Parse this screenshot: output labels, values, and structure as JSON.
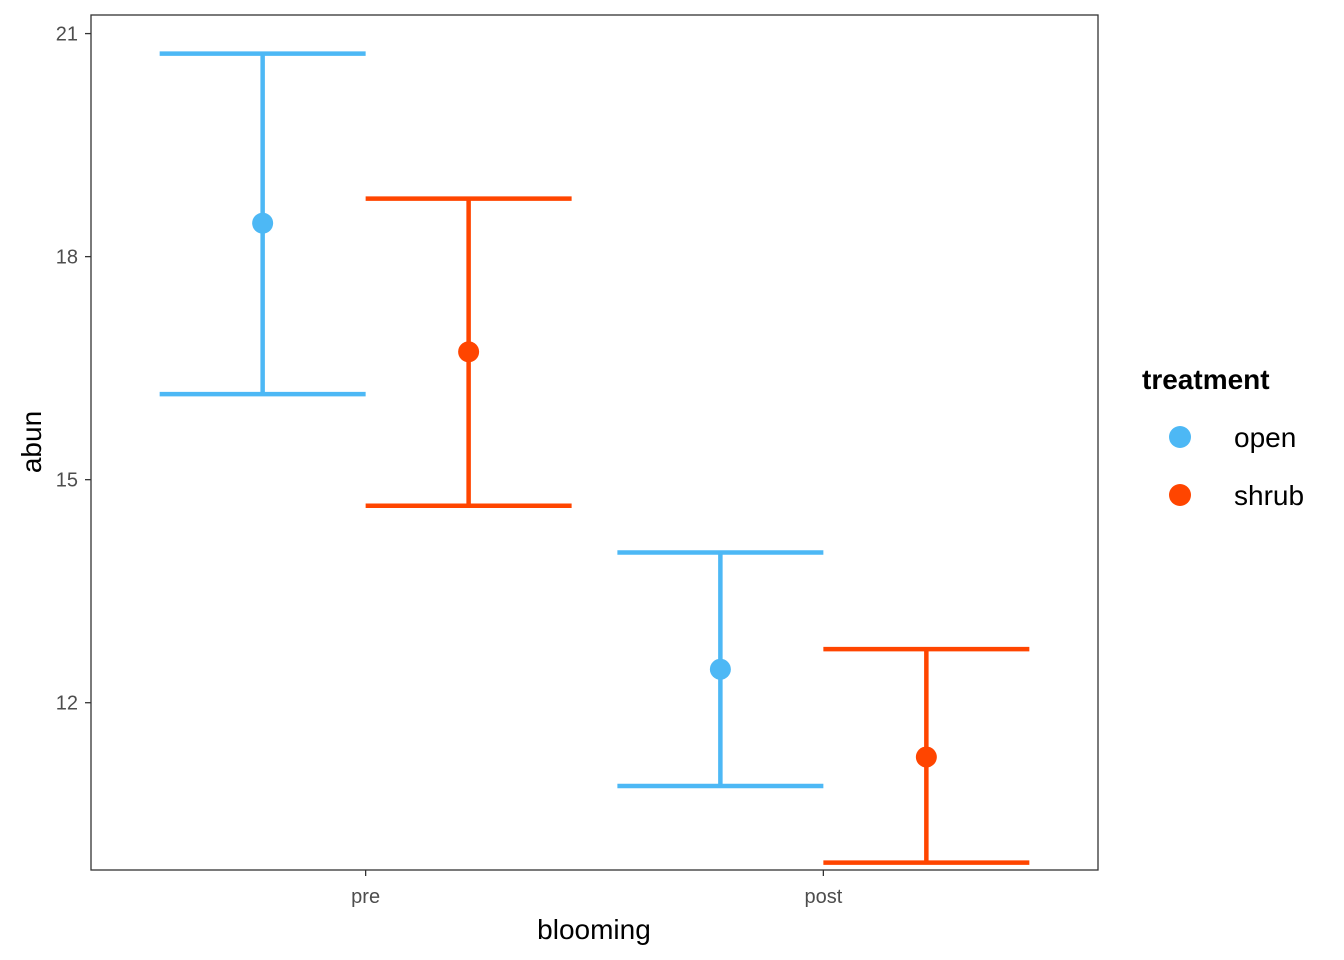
{
  "chart_data": {
    "type": "scatter",
    "title": "",
    "xlabel": "blooming",
    "ylabel": "abun",
    "categories": [
      "pre",
      "post"
    ],
    "ylim": [
      9.75,
      21.25
    ],
    "yticks": [
      12,
      15,
      18,
      21
    ],
    "ytick_labels": [
      "12",
      "15",
      "18",
      "21"
    ],
    "grid": false,
    "legend": {
      "title": "treatment",
      "position": "right"
    },
    "series": [
      {
        "name": "open",
        "color": "#4DB8F5",
        "points": [
          {
            "x": "pre",
            "y": 18.45,
            "ymin": 16.15,
            "ymax": 20.73
          },
          {
            "x": "post",
            "y": 12.45,
            "ymin": 10.88,
            "ymax": 14.02
          }
        ]
      },
      {
        "name": "shrub",
        "color": "#FF4500",
        "points": [
          {
            "x": "pre",
            "y": 16.72,
            "ymin": 14.65,
            "ymax": 18.78
          },
          {
            "x": "post",
            "y": 11.27,
            "ymin": 9.85,
            "ymax": 12.72
          }
        ]
      }
    ]
  }
}
